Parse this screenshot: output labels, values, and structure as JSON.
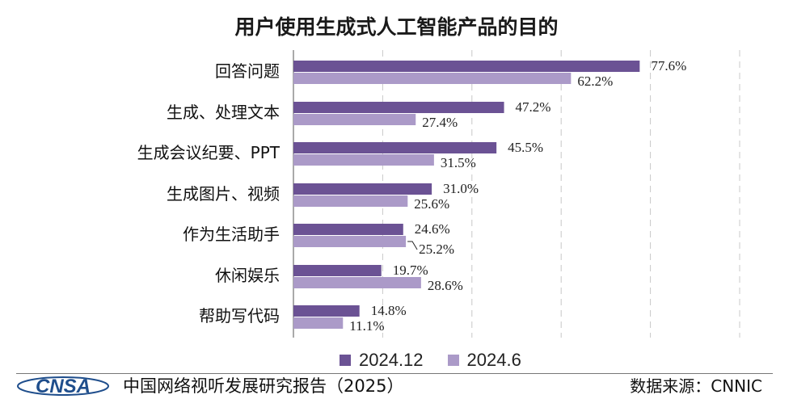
{
  "chart_data": {
    "type": "bar",
    "orientation": "horizontal",
    "title": "用户使用生成式人工智能产品的目的",
    "categories": [
      "回答问题",
      "生成、处理文本",
      "生成会议纪要、PPT",
      "生成图片、视频",
      "作为生活助手",
      "休闲娱乐",
      "帮助写代码"
    ],
    "series": [
      {
        "name": "2024.12",
        "color": "#6b5294",
        "values": [
          77.6,
          47.2,
          45.5,
          31.0,
          24.6,
          19.7,
          14.8
        ],
        "labels": [
          "77.6%",
          "47.2%",
          "45.5%",
          "31.0%",
          "24.6%",
          "19.7%",
          "14.8%"
        ]
      },
      {
        "name": "2024.6",
        "color": "#ab9ac8",
        "values": [
          62.2,
          27.4,
          31.5,
          25.6,
          25.2,
          28.6,
          11.1
        ],
        "labels": [
          "62.2%",
          "27.4%",
          "31.5%",
          "25.6%",
          "25.2%",
          "28.6%",
          "11.1%"
        ]
      }
    ],
    "xlim": [
      0,
      100
    ],
    "grid": "vertical dashed",
    "legend_position": "bottom"
  },
  "footer": {
    "logo_text": "CNSA",
    "report": "中国网络视听发展研究报告（2025）",
    "source": "数据来源：CNNIC"
  },
  "colors": {
    "series1": "#6b5294",
    "series2": "#ab9ac8",
    "logo": "#1f4e8c"
  }
}
